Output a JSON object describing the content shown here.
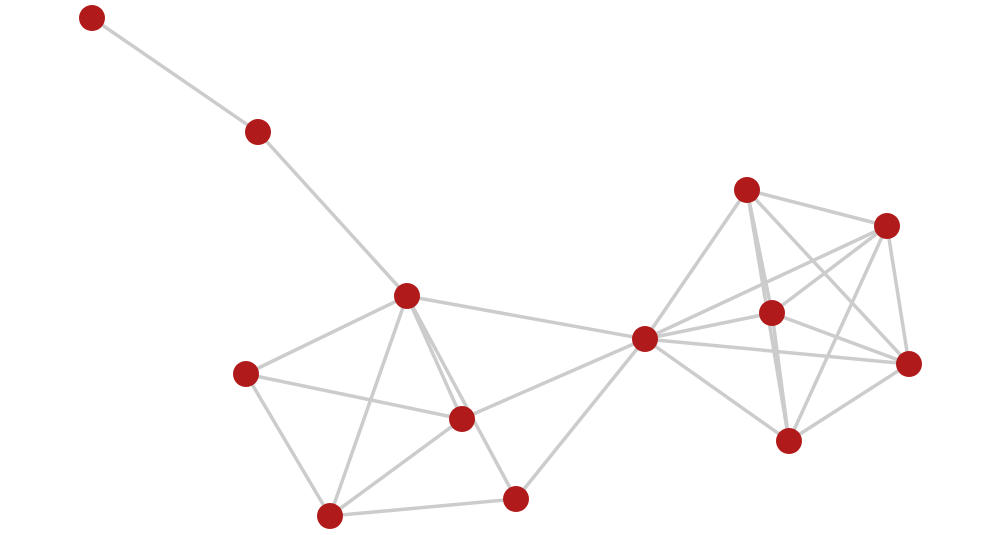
{
  "graph": {
    "node_color": "#b11a1a",
    "edge_color": "#cccccc",
    "nodes": [
      "n1",
      "n2",
      "n3",
      "n4",
      "n5",
      "n6",
      "n7",
      "n8",
      "n9",
      "n10",
      "n11",
      "n12",
      "n13"
    ],
    "edges": [
      [
        "n1",
        "n2"
      ],
      [
        "n2",
        "n3"
      ],
      [
        "n3",
        "n8"
      ],
      [
        "n3",
        "n4"
      ],
      [
        "n3",
        "n6"
      ],
      [
        "n3",
        "n5"
      ],
      [
        "n3",
        "n7"
      ],
      [
        "n4",
        "n5"
      ],
      [
        "n4",
        "n6"
      ],
      [
        "n5",
        "n6"
      ],
      [
        "n5",
        "n8"
      ],
      [
        "n6",
        "n7"
      ],
      [
        "n7",
        "n8"
      ],
      [
        "n8",
        "n9"
      ],
      [
        "n8",
        "n10"
      ],
      [
        "n8",
        "n11"
      ],
      [
        "n8",
        "n12"
      ],
      [
        "n8",
        "n13"
      ],
      [
        "n9",
        "n10"
      ],
      [
        "n9",
        "n11"
      ],
      [
        "n9",
        "n13"
      ],
      [
        "n9",
        "n12"
      ],
      [
        "n10",
        "n11"
      ],
      [
        "n10",
        "n12"
      ],
      [
        "n10",
        "n13"
      ],
      [
        "n11",
        "n12"
      ],
      [
        "n11",
        "n13"
      ],
      [
        "n12",
        "n13"
      ]
    ]
  }
}
